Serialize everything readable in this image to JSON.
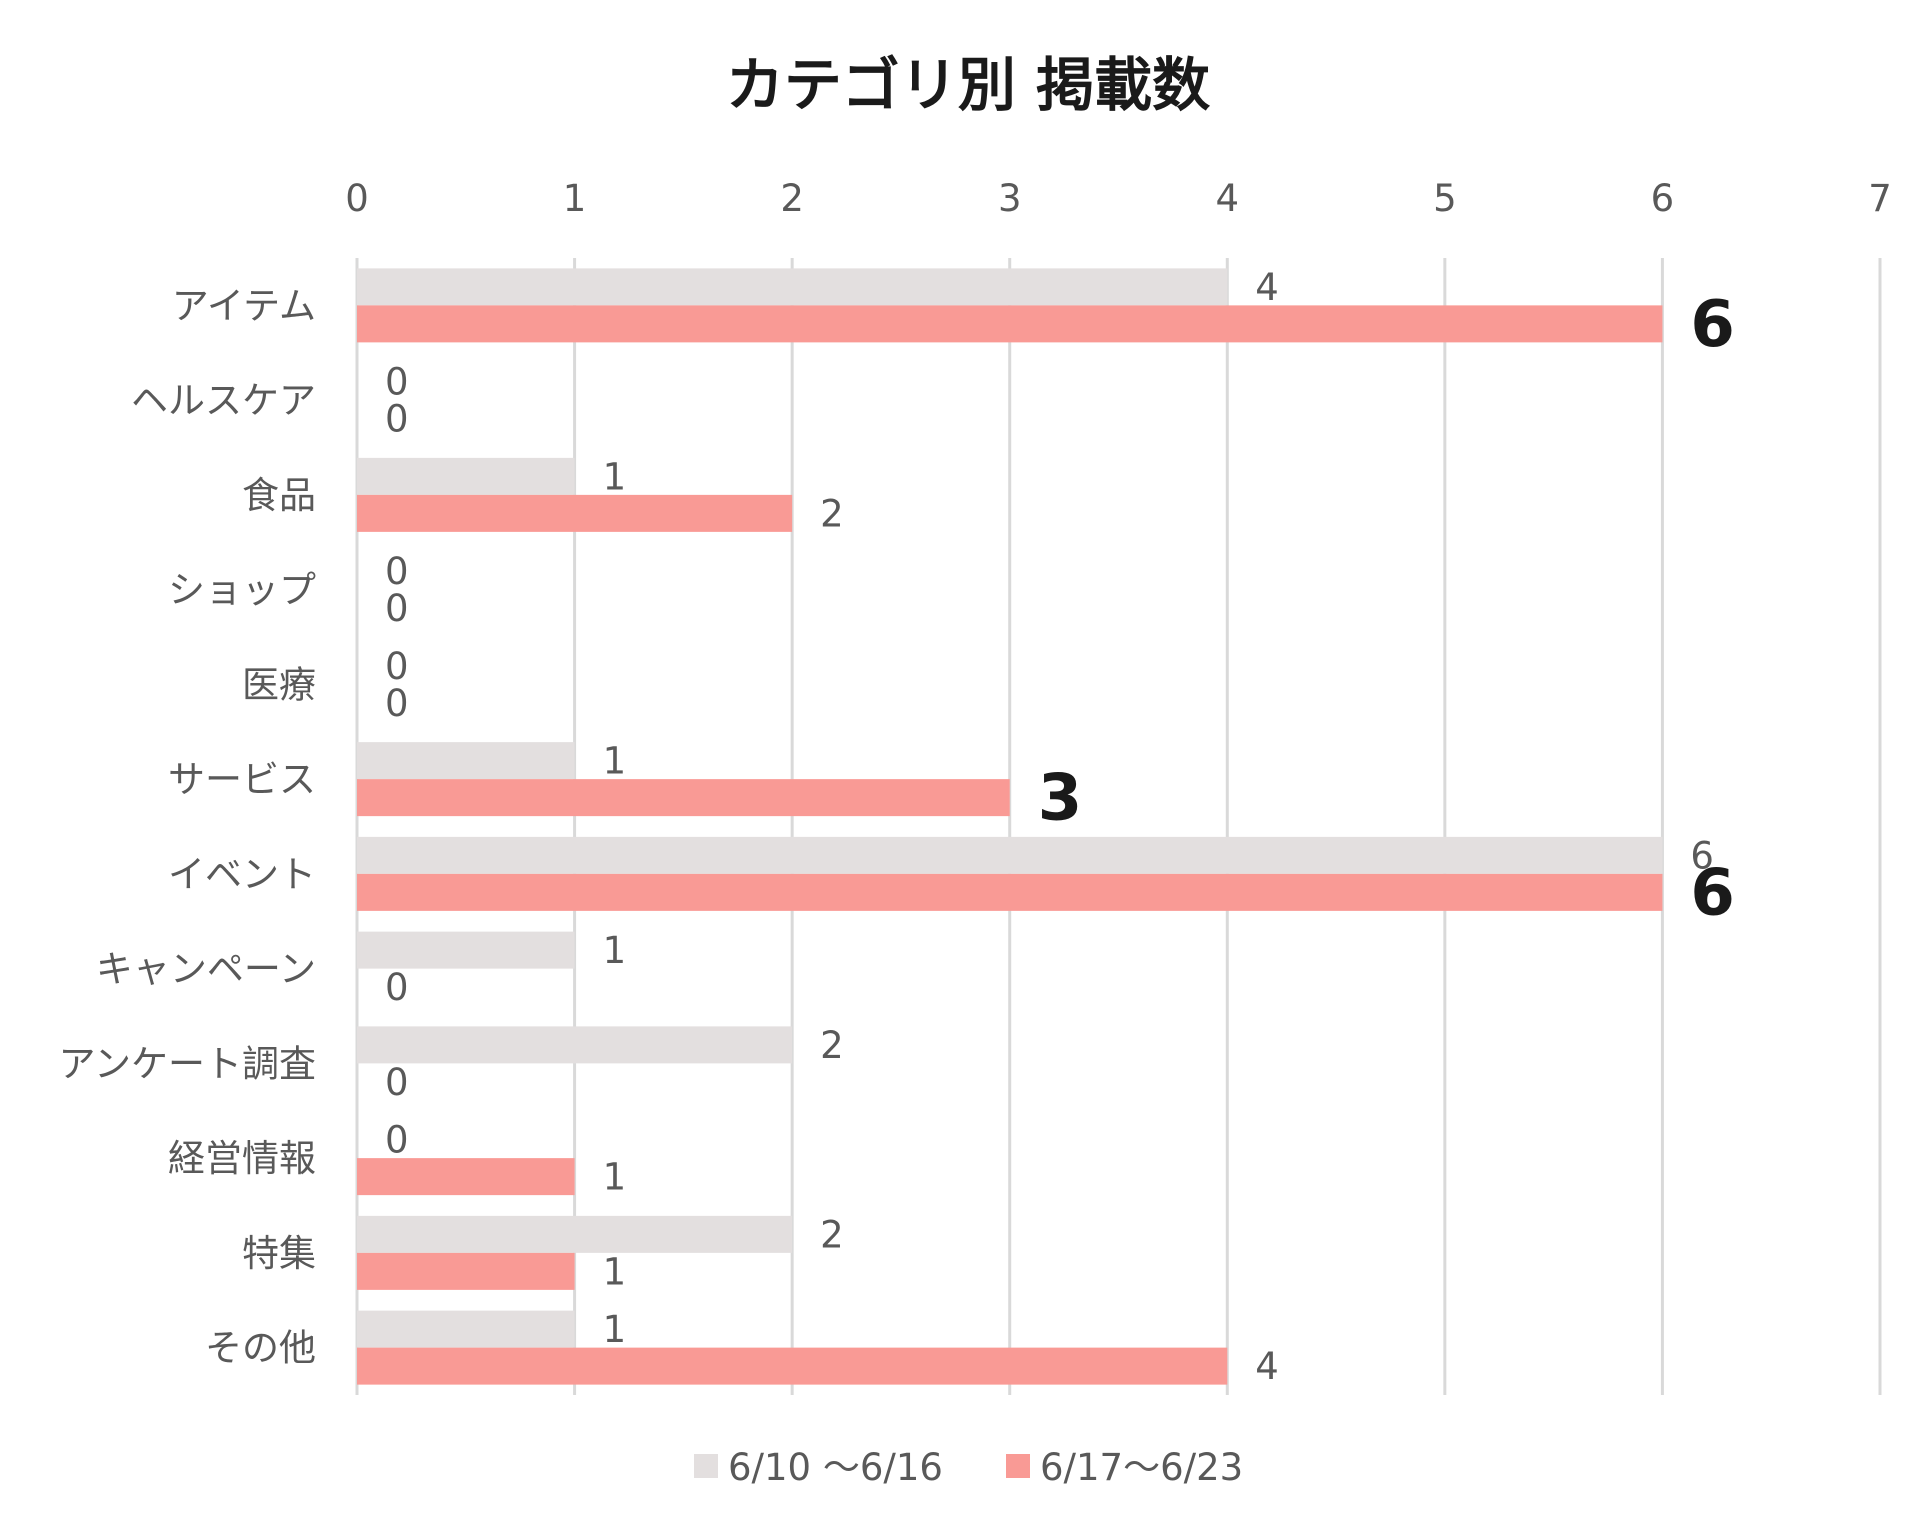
{
  "chart_data": {
    "type": "bar",
    "orientation": "horizontal",
    "title": "カテゴリ別 掲載数",
    "categories": [
      "アイテム",
      "ヘルスケア",
      "食品",
      "ショップ",
      "医療",
      "サービス",
      "イベント",
      "キャンペーン",
      "アンケート調査",
      "経営情報",
      "特集",
      "その他"
    ],
    "series": [
      {
        "name": "6/10 ～6/16",
        "color": "#e3dfdf",
        "values": [
          4,
          0,
          1,
          0,
          0,
          1,
          6,
          1,
          2,
          0,
          2,
          1
        ]
      },
      {
        "name": "6/17～6/23",
        "color": "#f99a95",
        "values": [
          6,
          0,
          2,
          0,
          0,
          3,
          6,
          0,
          0,
          1,
          1,
          4
        ]
      }
    ],
    "emphasized_labels": [
      "6",
      "3",
      "6"
    ],
    "xlim": [
      0,
      7
    ],
    "x_ticks": [
      "0",
      "1",
      "2",
      "3",
      "4",
      "5",
      "6",
      "7"
    ],
    "x_axis_position": "top",
    "grid": true,
    "legend_position": "bottom"
  }
}
